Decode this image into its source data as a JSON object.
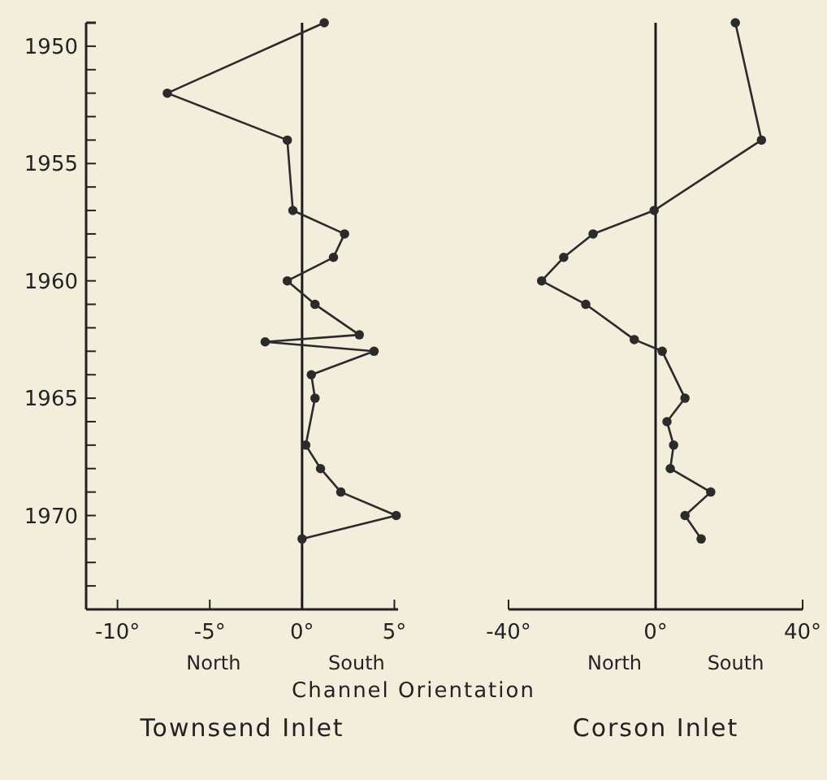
{
  "chart_data": [
    {
      "type": "line",
      "title": "Townsend Inlet",
      "xlabel": "Channel Orientation",
      "annotations": [
        "North",
        "South"
      ],
      "marker": "circle",
      "tick_labels": "xy",
      "xlim": [
        -11.7,
        5.2
      ],
      "xticks": [
        {
          "value": -10,
          "label": "-10°"
        },
        {
          "value": -5,
          "label": "-5°"
        },
        {
          "value": 0,
          "label": "0°"
        },
        {
          "value": 5,
          "label": "5°"
        }
      ],
      "ylim": [
        1974,
        1949
      ],
      "yticks": [
        1950,
        {
          "value": 1951,
          "label": null
        },
        {
          "value": 1952,
          "label": null
        },
        {
          "value": 1953,
          "label": null
        },
        {
          "value": 1954,
          "label": null
        },
        1955,
        {
          "value": 1956,
          "label": null
        },
        {
          "value": 1957,
          "label": null
        },
        {
          "value": 1958,
          "label": null
        },
        {
          "value": 1959,
          "label": null
        },
        1960,
        {
          "value": 1961,
          "label": null
        },
        {
          "value": 1962,
          "label": null
        },
        {
          "value": 1963,
          "label": null
        },
        {
          "value": 1964,
          "label": null
        },
        1965,
        {
          "value": 1966,
          "label": null
        },
        {
          "value": 1967,
          "label": null
        },
        {
          "value": 1968,
          "label": null
        },
        {
          "value": 1969,
          "label": null
        },
        1970,
        {
          "value": 1971,
          "label": null
        },
        {
          "value": 1972,
          "label": null
        },
        {
          "value": 1973,
          "label": null
        }
      ],
      "ref_lines": [
        {
          "axis": "x",
          "value": 0,
          "label": null,
          "color": "#1a1a1a"
        }
      ],
      "series": [
        {
          "color": "#2b2b2b",
          "x": [
            1.2,
            -7.3,
            -0.8,
            -0.5,
            2.3,
            1.7,
            -0.8,
            0.7,
            3.1,
            -2.0,
            3.9,
            0.5,
            0.7,
            0.2,
            1.0,
            2.1,
            5.1,
            0.0
          ],
          "values": [
            1949,
            1952,
            1954,
            1957,
            1958,
            1959,
            1960,
            1961,
            1962.3,
            1962.6,
            1963,
            1964,
            1965,
            1967,
            1968,
            1969,
            1970,
            1971
          ]
        }
      ]
    },
    {
      "type": "line",
      "title": "Corson Inlet",
      "annotations": [
        "North",
        "South"
      ],
      "marker": "circle",
      "tick_labels": "x",
      "xlim": [
        -40,
        40
      ],
      "xticks": [
        {
          "value": -40,
          "label": "-40°"
        },
        {
          "value": 0,
          "label": "0°"
        },
        {
          "value": 40,
          "label": "40°"
        }
      ],
      "ylim": [
        1974,
        1949
      ],
      "ref_lines": [
        {
          "axis": "x",
          "value": 0,
          "label": null,
          "color": "#1a1a1a"
        }
      ],
      "series": [
        {
          "color": "#2b2b2b",
          "x": [
            21.7,
            28.8,
            -0.4,
            -17,
            -25,
            -31,
            -19,
            -5.8,
            1.8,
            8.0,
            3.1,
            4.9,
            4.0,
            15,
            8.0,
            12.4
          ],
          "values": [
            1949,
            1954,
            1957,
            1958,
            1959,
            1960,
            1961,
            1962.5,
            1963,
            1965,
            1966,
            1967,
            1968,
            1969,
            1970,
            1971
          ]
        }
      ]
    }
  ]
}
